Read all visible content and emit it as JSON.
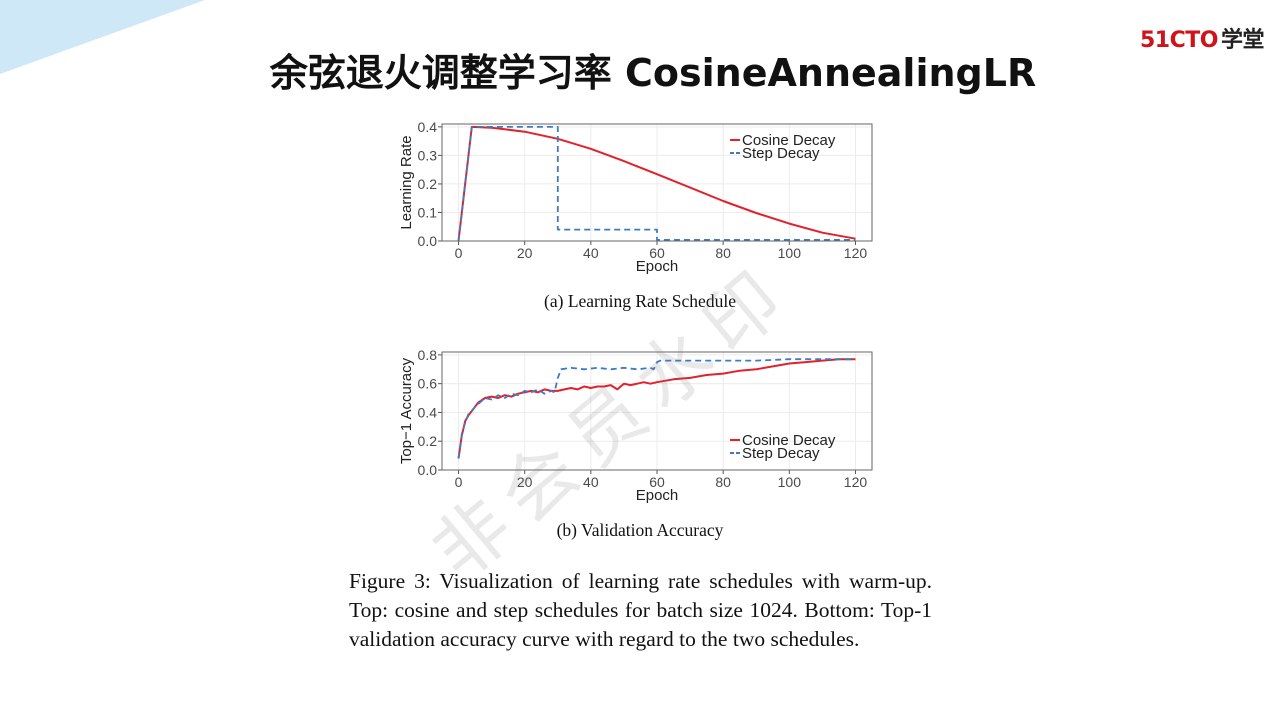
{
  "slide": {
    "title": "余弦退火调整学习率 CosineAnnealingLR",
    "logo_part1": "51CTO",
    "logo_part2": "学堂",
    "watermark": "非会员水印",
    "colors": {
      "decor_blue": "#cfe8f7",
      "logo_red": "#d0121b",
      "cosine": "#e3212b",
      "step": "#3b7cc4"
    }
  },
  "captions": {
    "a": "(a) Learning Rate Schedule",
    "b": "(b) Validation Accuracy",
    "figure": "Figure 3: Visualization of learning rate schedules with warm-up. Top: cosine and step schedules for batch size 1024. Bottom: Top-1 validation accuracy curve with regard to the two schedules."
  },
  "chart_data": [
    {
      "type": "line",
      "xlabel": "Epoch",
      "ylabel": "Learning Rate",
      "xlim": [
        -5,
        125
      ],
      "ylim": [
        0,
        0.41
      ],
      "xticks": [
        0,
        20,
        40,
        60,
        80,
        100,
        120
      ],
      "yticks": [
        0.0,
        0.1,
        0.2,
        0.3,
        0.4
      ],
      "ytick_labels": [
        "0.0",
        "0.1",
        "0.2",
        "0.3",
        "0.4"
      ],
      "legend": "top-right",
      "grid": true,
      "series": [
        {
          "name": "Cosine Decay",
          "style": "solid",
          "color": "#e3212b",
          "x": [
            0,
            4,
            10,
            20,
            30,
            40,
            50,
            60,
            70,
            80,
            90,
            100,
            110,
            120
          ],
          "y": [
            0.0,
            0.4,
            0.397,
            0.383,
            0.358,
            0.323,
            0.28,
            0.234,
            0.187,
            0.14,
            0.098,
            0.061,
            0.029,
            0.008
          ]
        },
        {
          "name": "Step Decay",
          "style": "dashed",
          "color": "#3b7cc4",
          "x": [
            0,
            4,
            30,
            30,
            60,
            60,
            120
          ],
          "y": [
            0.0,
            0.4,
            0.4,
            0.04,
            0.04,
            0.004,
            0.004
          ]
        }
      ]
    },
    {
      "type": "line",
      "xlabel": "Epoch",
      "ylabel": "Top−1 Accuracy",
      "xlim": [
        -5,
        125
      ],
      "ylim": [
        0,
        0.82
      ],
      "xticks": [
        0,
        20,
        40,
        60,
        80,
        100,
        120
      ],
      "yticks": [
        0.0,
        0.2,
        0.4,
        0.6,
        0.8
      ],
      "ytick_labels": [
        "0.0",
        "0.2",
        "0.4",
        "0.6",
        "0.8"
      ],
      "legend": "bottom-right",
      "grid": true,
      "series": [
        {
          "name": "Cosine Decay",
          "style": "solid",
          "color": "#e3212b",
          "x": [
            0,
            1,
            2,
            3,
            4,
            5,
            6,
            8,
            10,
            12,
            14,
            16,
            18,
            20,
            22,
            24,
            26,
            28,
            30,
            32,
            34,
            36,
            38,
            40,
            42,
            44,
            46,
            48,
            50,
            52,
            54,
            56,
            58,
            60,
            65,
            70,
            75,
            80,
            85,
            90,
            95,
            100,
            105,
            110,
            115,
            120
          ],
          "y": [
            0.08,
            0.24,
            0.34,
            0.38,
            0.41,
            0.44,
            0.47,
            0.5,
            0.51,
            0.5,
            0.52,
            0.51,
            0.53,
            0.54,
            0.55,
            0.54,
            0.56,
            0.55,
            0.55,
            0.56,
            0.57,
            0.56,
            0.58,
            0.57,
            0.58,
            0.58,
            0.59,
            0.56,
            0.6,
            0.59,
            0.6,
            0.61,
            0.6,
            0.61,
            0.63,
            0.64,
            0.66,
            0.67,
            0.69,
            0.7,
            0.72,
            0.74,
            0.75,
            0.76,
            0.77,
            0.77
          ]
        },
        {
          "name": "Step Decay",
          "style": "dashed",
          "color": "#3b7cc4",
          "x": [
            0,
            1,
            2,
            3,
            4,
            5,
            6,
            8,
            10,
            12,
            14,
            16,
            18,
            20,
            22,
            24,
            26,
            28,
            29,
            30,
            31,
            34,
            38,
            42,
            46,
            50,
            54,
            58,
            59,
            60,
            61,
            70,
            80,
            90,
            100,
            110,
            120
          ],
          "y": [
            0.08,
            0.25,
            0.33,
            0.39,
            0.41,
            0.44,
            0.46,
            0.5,
            0.49,
            0.52,
            0.5,
            0.53,
            0.52,
            0.55,
            0.54,
            0.56,
            0.53,
            0.55,
            0.54,
            0.64,
            0.7,
            0.71,
            0.7,
            0.71,
            0.7,
            0.71,
            0.7,
            0.71,
            0.7,
            0.75,
            0.76,
            0.76,
            0.76,
            0.76,
            0.77,
            0.77,
            0.77
          ]
        }
      ]
    }
  ]
}
